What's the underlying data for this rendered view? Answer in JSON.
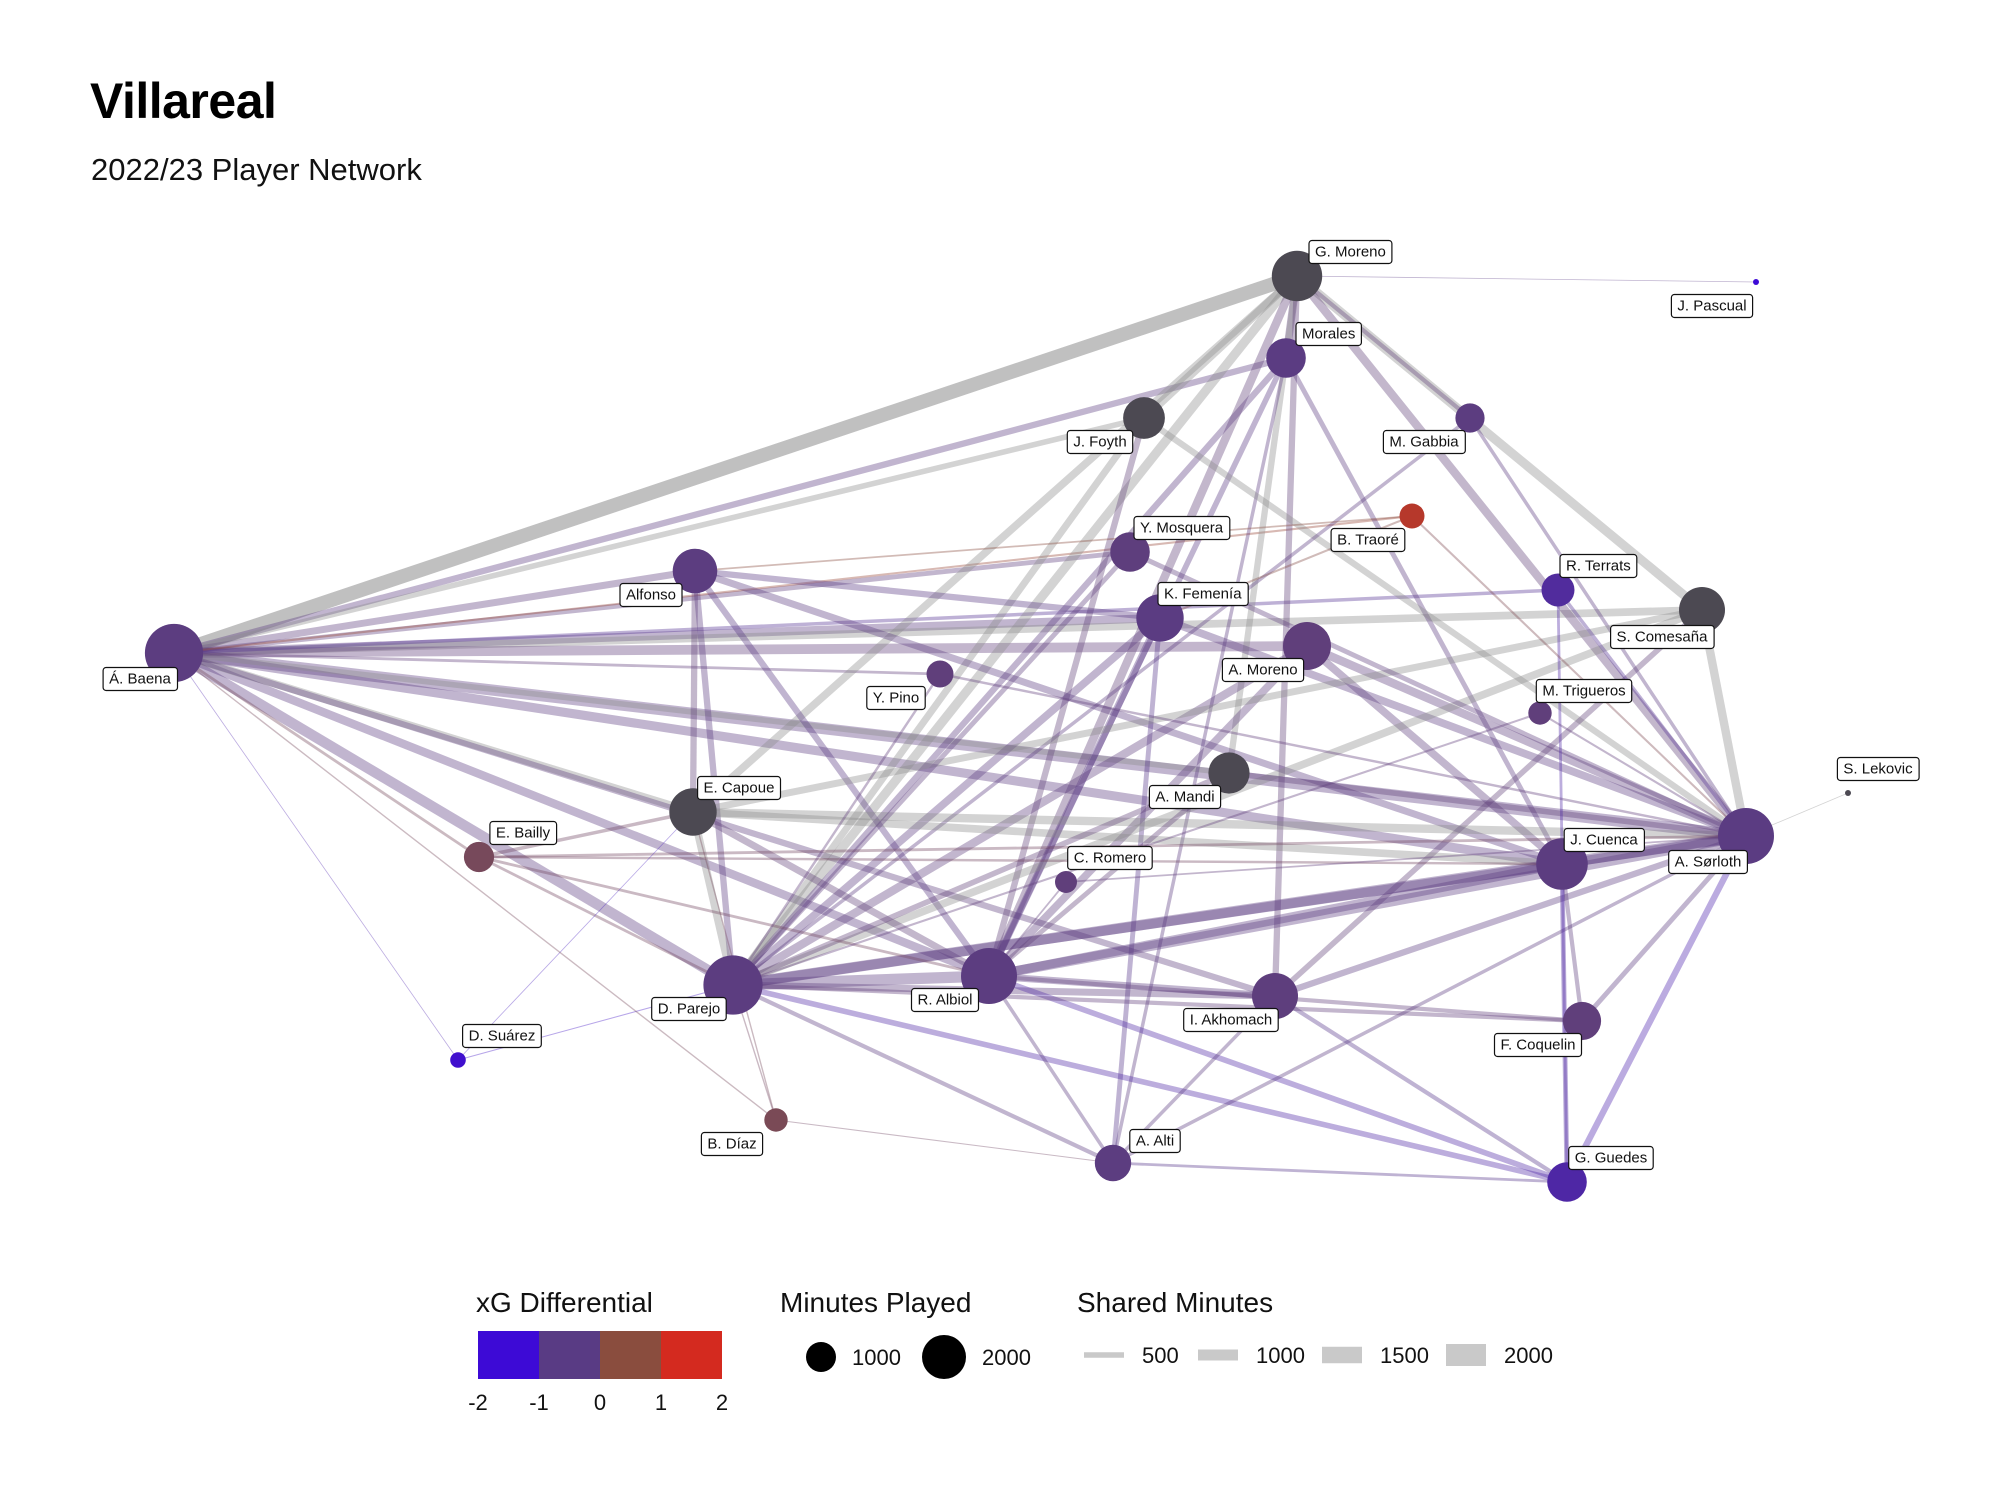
{
  "header": {
    "title": "Villareal",
    "subtitle": "2022/23 Player Network"
  },
  "chart_data": {
    "type": "network",
    "title": "Villareal",
    "subtitle": "2022/23 Player Network",
    "nodes": [
      {
        "id": "G. Moreno",
        "minutes": 2100,
        "xg_diff": -0.3
      },
      {
        "id": "Morales",
        "minutes": 1300,
        "xg_diff": -0.9
      },
      {
        "id": "J. Pascual",
        "minutes": 20,
        "xg_diff": -2
      },
      {
        "id": "J. Foyth",
        "minutes": 1450,
        "xg_diff": -0.3
      },
      {
        "id": "M. Gabbia",
        "minutes": 700,
        "xg_diff": -0.8
      },
      {
        "id": "B. Traoré",
        "minutes": 520,
        "xg_diff": 1.6
      },
      {
        "id": "Y. Mosquera",
        "minutes": 1300,
        "xg_diff": -0.7
      },
      {
        "id": "Alfonso",
        "minutes": 1650,
        "xg_diff": -0.8
      },
      {
        "id": "K. Femenía",
        "minutes": 1850,
        "xg_diff": -0.9
      },
      {
        "id": "R. Terrats",
        "minutes": 900,
        "xg_diff": -1.3
      },
      {
        "id": "S. Comesaña",
        "minutes": 1750,
        "xg_diff": -0.3
      },
      {
        "id": "Á. Baena",
        "minutes": 2800,
        "xg_diff": -0.8
      },
      {
        "id": "A. Moreno",
        "minutes": 1900,
        "xg_diff": -0.6
      },
      {
        "id": "Y. Pino",
        "minutes": 600,
        "xg_diff": -0.6
      },
      {
        "id": "M. Trigueros",
        "minutes": 450,
        "xg_diff": -0.6
      },
      {
        "id": "S. Lekovic",
        "minutes": 30,
        "xg_diff": -0.3
      },
      {
        "id": "A. Mandi",
        "minutes": 1400,
        "xg_diff": -0.4
      },
      {
        "id": "E. Capoue",
        "minutes": 1850,
        "xg_diff": -0.3
      },
      {
        "id": "E. Bailly",
        "minutes": 750,
        "xg_diff": 0.4
      },
      {
        "id": "J. Cuenca",
        "minutes": 2200,
        "xg_diff": -0.8
      },
      {
        "id": "A. Sørloth",
        "minutes": 2600,
        "xg_diff": -0.9
      },
      {
        "id": "C. Romero",
        "minutes": 400,
        "xg_diff": -0.6
      },
      {
        "id": "D. Parejo",
        "minutes": 2900,
        "xg_diff": -0.8
      },
      {
        "id": "R. Albiol",
        "minutes": 2600,
        "xg_diff": -0.8
      },
      {
        "id": "I. Akhomach",
        "minutes": 1750,
        "xg_diff": -0.7
      },
      {
        "id": "F. Coquelin",
        "minutes": 1200,
        "xg_diff": -0.6
      },
      {
        "id": "D. Suárez",
        "minutes": 200,
        "xg_diff": -1.9
      },
      {
        "id": "B. Díaz",
        "minutes": 450,
        "xg_diff": 0.5
      },
      {
        "id": "A. Alti",
        "minutes": 1100,
        "xg_diff": -0.8
      },
      {
        "id": "G. Guedes",
        "minutes": 1300,
        "xg_diff": -1.4
      }
    ],
    "edges": [
      {
        "source": "Á. Baena",
        "target": "G. Moreno",
        "shared_minutes": 2000,
        "xg_diff": -0.2
      },
      {
        "source": "Á. Baena",
        "target": "A. Sørloth",
        "shared_minutes": 1600,
        "xg_diff": -0.9
      },
      {
        "source": "Á. Baena",
        "target": "K. Femenía",
        "shared_minutes": 1200,
        "xg_diff": -0.8
      },
      {
        "source": "Á. Baena",
        "target": "S. Comesaña",
        "shared_minutes": 1100,
        "xg_diff": -0.3
      },
      {
        "source": "Á. Baena",
        "target": "D. Parejo",
        "shared_minutes": 1500,
        "xg_diff": -0.8
      },
      {
        "source": "Á. Baena",
        "target": "A. Moreno",
        "shared_minutes": 1400,
        "xg_diff": -0.6
      },
      {
        "source": "Á. Baena",
        "target": "Alfonso",
        "shared_minutes": 1000,
        "xg_diff": -0.7
      },
      {
        "source": "Á. Baena",
        "target": "J. Cuenca",
        "shared_minutes": 1300,
        "xg_diff": -0.8
      },
      {
        "source": "Á. Baena",
        "target": "R. Albiol",
        "shared_minutes": 1200,
        "xg_diff": -0.9
      },
      {
        "source": "Á. Baena",
        "target": "E. Capoue",
        "shared_minutes": 1100,
        "xg_diff": -0.3
      },
      {
        "source": "Á. Baena",
        "target": "Morales",
        "shared_minutes": 900,
        "xg_diff": -0.9
      },
      {
        "source": "Á. Baena",
        "target": "J. Foyth",
        "shared_minutes": 800,
        "xg_diff": -0.3
      },
      {
        "source": "Á. Baena",
        "target": "A. Mandi",
        "shared_minutes": 800,
        "xg_diff": -0.4
      },
      {
        "source": "Á. Baena",
        "target": "I. Akhomach",
        "shared_minutes": 900,
        "xg_diff": -0.7
      },
      {
        "source": "Á. Baena",
        "target": "E. Bailly",
        "shared_minutes": 400,
        "xg_diff": 0.4
      },
      {
        "source": "Á. Baena",
        "target": "Y. Mosquera",
        "shared_minutes": 700,
        "xg_diff": -0.7
      },
      {
        "source": "Á. Baena",
        "target": "R. Terrats",
        "shared_minutes": 500,
        "xg_diff": -1.2
      },
      {
        "source": "Á. Baena",
        "target": "D. Suárez",
        "shared_minutes": 100,
        "xg_diff": -1.5
      },
      {
        "source": "Á. Baena",
        "target": "Y. Pino",
        "shared_minutes": 400,
        "xg_diff": -0.6
      },
      {
        "source": "Á. Baena",
        "target": "B. Traoré",
        "shared_minutes": 300,
        "xg_diff": 1.2
      },
      {
        "source": "G. Moreno",
        "target": "J. Foyth",
        "shared_minutes": 1200,
        "xg_diff": -0.3
      },
      {
        "source": "G. Moreno",
        "target": "Morales",
        "shared_minutes": 1100,
        "xg_diff": -0.7
      },
      {
        "source": "G. Moreno",
        "target": "S. Comesaña",
        "shared_minutes": 1300,
        "xg_diff": -0.2
      },
      {
        "source": "G. Moreno",
        "target": "A. Sørloth",
        "shared_minutes": 1200,
        "xg_diff": -0.5
      },
      {
        "source": "G. Moreno",
        "target": "D. Parejo",
        "shared_minutes": 1300,
        "xg_diff": -0.4
      },
      {
        "source": "G. Moreno",
        "target": "R. Albiol",
        "shared_minutes": 1200,
        "xg_diff": -0.5
      },
      {
        "source": "G. Moreno",
        "target": "A. Mandi",
        "shared_minutes": 900,
        "xg_diff": -0.3
      },
      {
        "source": "G. Moreno",
        "target": "M. Gabbia",
        "shared_minutes": 600,
        "xg_diff": -0.5
      },
      {
        "source": "G. Moreno",
        "target": "J. Pascual",
        "shared_minutes": 50,
        "xg_diff": -1.0
      },
      {
        "source": "G. Moreno",
        "target": "E. Capoue",
        "shared_minutes": 1100,
        "xg_diff": -0.2
      },
      {
        "source": "G. Moreno",
        "target": "I. Akhomach",
        "shared_minutes": 900,
        "xg_diff": -0.5
      },
      {
        "source": "Morales",
        "target": "D. Parejo",
        "shared_minutes": 900,
        "xg_diff": -0.9
      },
      {
        "source": "Morales",
        "target": "R. Albiol",
        "shared_minutes": 800,
        "xg_diff": -1.0
      },
      {
        "source": "Morales",
        "target": "J. Cuenca",
        "shared_minutes": 700,
        "xg_diff": -0.9
      },
      {
        "source": "Morales",
        "target": "A. Alti",
        "shared_minutes": 500,
        "xg_diff": -0.9
      },
      {
        "source": "J. Foyth",
        "target": "D. Parejo",
        "shared_minutes": 1000,
        "xg_diff": -0.4
      },
      {
        "source": "J. Foyth",
        "target": "A. Sørloth",
        "shared_minutes": 900,
        "xg_diff": -0.4
      },
      {
        "source": "J. Foyth",
        "target": "R. Albiol",
        "shared_minutes": 900,
        "xg_diff": -0.5
      },
      {
        "source": "M. Gabbia",
        "target": "A. Sørloth",
        "shared_minutes": 500,
        "xg_diff": -0.8
      },
      {
        "source": "M. Gabbia",
        "target": "D. Parejo",
        "shared_minutes": 500,
        "xg_diff": -0.8
      },
      {
        "source": "Alfonso",
        "target": "J. Cuenca",
        "shared_minutes": 1000,
        "xg_diff": -0.9
      },
      {
        "source": "Alfonso",
        "target": "E. Capoue",
        "shared_minutes": 900,
        "xg_diff": -0.5
      },
      {
        "source": "Alfonso",
        "target": "R. Albiol",
        "shared_minutes": 900,
        "xg_diff": -1.0
      },
      {
        "source": "Alfonso",
        "target": "K. Femenía",
        "shared_minutes": 900,
        "xg_diff": -1.0
      },
      {
        "source": "Alfonso",
        "target": "D. Parejo",
        "shared_minutes": 900,
        "xg_diff": -0.9
      },
      {
        "source": "K. Femenía",
        "target": "D. Parejo",
        "shared_minutes": 1100,
        "xg_diff": -0.9
      },
      {
        "source": "K. Femenía",
        "target": "A. Sørloth",
        "shared_minutes": 1100,
        "xg_diff": -0.9
      },
      {
        "source": "K. Femenía",
        "target": "A. Alti",
        "shared_minutes": 700,
        "xg_diff": -1.1
      },
      {
        "source": "K. Femenía",
        "target": "R. Albiol",
        "shared_minutes": 1000,
        "xg_diff": -1.0
      },
      {
        "source": "A. Moreno",
        "target": "A. Sørloth",
        "shared_minutes": 1200,
        "xg_diff": -0.7
      },
      {
        "source": "A. Moreno",
        "target": "D. Parejo",
        "shared_minutes": 1200,
        "xg_diff": -0.7
      },
      {
        "source": "A. Moreno",
        "target": "J. Cuenca",
        "shared_minutes": 1100,
        "xg_diff": -0.7
      },
      {
        "source": "A. Moreno",
        "target": "R. Albiol",
        "shared_minutes": 1100,
        "xg_diff": -0.7
      },
      {
        "source": "S. Comesaña",
        "target": "A. Sørloth",
        "shared_minutes": 1200,
        "xg_diff": -0.3
      },
      {
        "source": "S. Comesaña",
        "target": "E. Capoue",
        "shared_minutes": 1000,
        "xg_diff": -0.3
      },
      {
        "source": "S. Comesaña",
        "target": "D. Parejo",
        "shared_minutes": 1100,
        "xg_diff": -0.4
      },
      {
        "source": "S. Comesaña",
        "target": "I. Akhomach",
        "shared_minutes": 800,
        "xg_diff": -0.5
      },
      {
        "source": "E. Capoue",
        "target": "A. Sørloth",
        "shared_minutes": 1200,
        "xg_diff": -0.3
      },
      {
        "source": "E. Capoue",
        "target": "D. Parejo",
        "shared_minutes": 1100,
        "xg_diff": -0.4
      },
      {
        "source": "E. Capoue",
        "target": "J. Cuenca",
        "shared_minutes": 1100,
        "xg_diff": -0.4
      },
      {
        "source": "E. Capoue",
        "target": "R. Albiol",
        "shared_minutes": 1000,
        "xg_diff": -0.5
      },
      {
        "source": "E. Capoue",
        "target": "E. Bailly",
        "shared_minutes": 500,
        "xg_diff": 0.2
      },
      {
        "source": "D. Parejo",
        "target": "R. Albiol",
        "shared_minutes": 1600,
        "xg_diff": -0.9
      },
      {
        "source": "D. Parejo",
        "target": "J. Cuenca",
        "shared_minutes": 1400,
        "xg_diff": -0.9
      },
      {
        "source": "D. Parejo",
        "target": "A. Sørloth",
        "shared_minutes": 1500,
        "xg_diff": -0.9
      },
      {
        "source": "D. Parejo",
        "target": "G. Guedes",
        "shared_minutes": 800,
        "xg_diff": -1.4
      },
      {
        "source": "D. Parejo",
        "target": "I. Akhomach",
        "shared_minutes": 1000,
        "xg_diff": -0.7
      },
      {
        "source": "D. Parejo",
        "target": "A. Alti",
        "shared_minutes": 600,
        "xg_diff": -0.8
      },
      {
        "source": "D. Parejo",
        "target": "B. Díaz",
        "shared_minutes": 200,
        "xg_diff": 0.3
      },
      {
        "source": "D. Parejo",
        "target": "E. Bailly",
        "shared_minutes": 400,
        "xg_diff": 0.3
      },
      {
        "source": "R. Albiol",
        "target": "J. Cuenca",
        "shared_minutes": 1300,
        "xg_diff": -0.9
      },
      {
        "source": "R. Albiol",
        "target": "A. Sørloth",
        "shared_minutes": 1400,
        "xg_diff": -0.9
      },
      {
        "source": "R. Albiol",
        "target": "G. Guedes",
        "shared_minutes": 800,
        "xg_diff": -1.4
      },
      {
        "source": "R. Albiol",
        "target": "I. Akhomach",
        "shared_minutes": 1000,
        "xg_diff": -0.8
      },
      {
        "source": "R. Albiol",
        "target": "A. Alti",
        "shared_minutes": 500,
        "xg_diff": -0.8
      },
      {
        "source": "J. Cuenca",
        "target": "A. Sørloth",
        "shared_minutes": 1300,
        "xg_diff": -0.9
      },
      {
        "source": "J. Cuenca",
        "target": "G. Guedes",
        "shared_minutes": 700,
        "xg_diff": -1.3
      },
      {
        "source": "J. Cuenca",
        "target": "F. Coquelin",
        "shared_minutes": 600,
        "xg_diff": -0.7
      },
      {
        "source": "A. Sørloth",
        "target": "G. Guedes",
        "shared_minutes": 900,
        "xg_diff": -1.5
      },
      {
        "source": "A. Sørloth",
        "target": "F. Coquelin",
        "shared_minutes": 700,
        "xg_diff": -0.8
      },
      {
        "source": "A. Sørloth",
        "target": "I. Akhomach",
        "shared_minutes": 900,
        "xg_diff": -0.8
      },
      {
        "source": "A. Sørloth",
        "target": "A. Alti",
        "shared_minutes": 500,
        "xg_diff": -0.9
      },
      {
        "source": "A. Sørloth",
        "target": "S. Lekovic",
        "shared_minutes": 30,
        "xg_diff": -0.3
      },
      {
        "source": "I. Akhomach",
        "target": "G. Guedes",
        "shared_minutes": 600,
        "xg_diff": -1.1
      },
      {
        "source": "I. Akhomach",
        "target": "A. Alti",
        "shared_minutes": 500,
        "xg_diff": -0.8
      },
      {
        "source": "A. Mandi",
        "target": "D. Parejo",
        "shared_minutes": 800,
        "xg_diff": -0.5
      },
      {
        "source": "A. Mandi",
        "target": "A. Sørloth",
        "shared_minutes": 800,
        "xg_diff": -0.5
      },
      {
        "source": "A. Mandi",
        "target": "R. Albiol",
        "shared_minutes": 700,
        "xg_diff": -0.5
      },
      {
        "source": "Y. Mosquera",
        "target": "A. Sørloth",
        "shared_minutes": 700,
        "xg_diff": -0.7
      },
      {
        "source": "Y. Mosquera",
        "target": "D. Parejo",
        "shared_minutes": 700,
        "xg_diff": -0.7
      },
      {
        "source": "R. Terrats",
        "target": "A. Sørloth",
        "shared_minutes": 500,
        "xg_diff": -1.2
      },
      {
        "source": "R. Terrats",
        "target": "G. Guedes",
        "shared_minutes": 400,
        "xg_diff": -1.4
      },
      {
        "source": "B. Traoré",
        "target": "K. Femenía",
        "shared_minutes": 300,
        "xg_diff": 0.8
      },
      {
        "source": "B. Traoré",
        "target": "Alfonso",
        "shared_minutes": 250,
        "xg_diff": 1.0
      },
      {
        "source": "B. Traoré",
        "target": "A. Sørloth",
        "shared_minutes": 300,
        "xg_diff": 0.6
      },
      {
        "source": "E. Bailly",
        "target": "R. Albiol",
        "shared_minutes": 400,
        "xg_diff": 0.3
      },
      {
        "source": "E. Bailly",
        "target": "A. Sørloth",
        "shared_minutes": 400,
        "xg_diff": 0.3
      },
      {
        "source": "E. Bailly",
        "target": "J. Cuenca",
        "shared_minutes": 350,
        "xg_diff": 0.3
      },
      {
        "source": "D. Suárez",
        "target": "D. Parejo",
        "shared_minutes": 150,
        "xg_diff": -1.8
      },
      {
        "source": "D. Suárez",
        "target": "E. Capoue",
        "shared_minutes": 100,
        "xg_diff": -1.7
      },
      {
        "source": "B. Díaz",
        "target": "E. Capoue",
        "shared_minutes": 200,
        "xg_diff": 0.4
      },
      {
        "source": "B. Díaz",
        "target": "Á. Baena",
        "shared_minutes": 200,
        "xg_diff": 0.4
      },
      {
        "source": "B. Díaz",
        "target": "A. Alti",
        "shared_minutes": 150,
        "xg_diff": 0.2
      },
      {
        "source": "Y. Pino",
        "target": "A. Sørloth",
        "shared_minutes": 350,
        "xg_diff": -0.6
      },
      {
        "source": "Y. Pino",
        "target": "D. Parejo",
        "shared_minutes": 350,
        "xg_diff": -0.6
      },
      {
        "source": "M. Trigueros",
        "target": "A. Sørloth",
        "shared_minutes": 300,
        "xg_diff": -0.6
      },
      {
        "source": "M. Trigueros",
        "target": "D. Parejo",
        "shared_minutes": 300,
        "xg_diff": -0.6
      },
      {
        "source": "C. Romero",
        "target": "A. Sørloth",
        "shared_minutes": 250,
        "xg_diff": -0.6
      },
      {
        "source": "C. Romero",
        "target": "R. Albiol",
        "shared_minutes": 250,
        "xg_diff": -0.6
      },
      {
        "source": "F. Coquelin",
        "target": "D. Parejo",
        "shared_minutes": 600,
        "xg_diff": -0.6
      },
      {
        "source": "F. Coquelin",
        "target": "R. Albiol",
        "shared_minutes": 600,
        "xg_diff": -0.6
      },
      {
        "source": "G. Guedes",
        "target": "A. Alti",
        "shared_minutes": 400,
        "xg_diff": -1.1
      }
    ]
  },
  "legend": {
    "xg": {
      "title": "xG Differential",
      "ticks": [
        "-2",
        "-1",
        "0",
        "1",
        "2"
      ],
      "colors": [
        "#3d0ad6",
        "#593b84",
        "#8a4d3e",
        "#d42a1f"
      ]
    },
    "minutes": {
      "title": "Minutes Played",
      "entries": [
        {
          "label": "1000",
          "value": 1000
        },
        {
          "label": "2000",
          "value": 2000
        }
      ]
    },
    "shared": {
      "title": "Shared Minutes",
      "entries": [
        {
          "label": "500",
          "value": 500
        },
        {
          "label": "1000",
          "value": 1000
        },
        {
          "label": "1500",
          "value": 1500
        },
        {
          "label": "2000",
          "value": 2000
        }
      ]
    }
  }
}
